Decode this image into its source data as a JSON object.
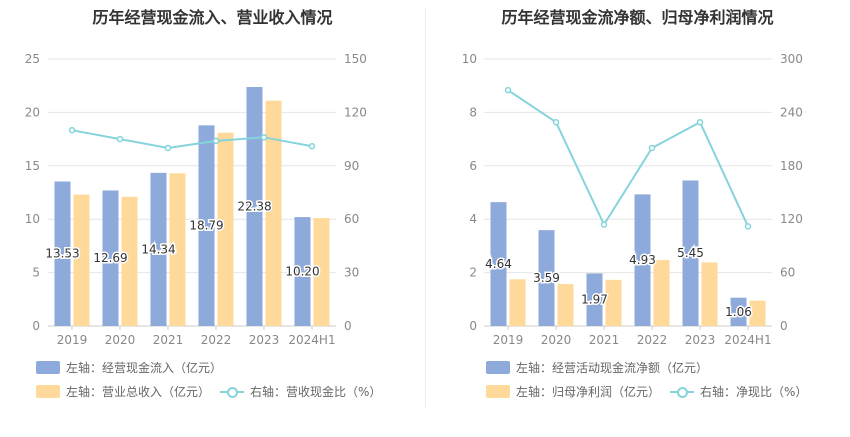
{
  "chart_data": [
    {
      "type": "bar",
      "title": "历年经营现金流入、营业收入情况",
      "categories": [
        "2019",
        "2020",
        "2021",
        "2022",
        "2023",
        "2024H1"
      ],
      "series": [
        {
          "name": "左轴：经营现金流入（亿元）",
          "axis": "left",
          "kind": "bar",
          "color": "#8eaadb",
          "values": [
            13.53,
            12.69,
            14.34,
            18.79,
            22.38,
            10.2
          ],
          "labels": [
            "13.53",
            "12.69",
            "14.34",
            "18.79",
            "22.38",
            "10.20"
          ]
        },
        {
          "name": "左轴：营业总收入（亿元）",
          "axis": "left",
          "kind": "bar",
          "color": "#ffd99a",
          "values": [
            12.3,
            12.1,
            14.3,
            18.1,
            21.1,
            10.1
          ]
        },
        {
          "name": "右轴：营收现金比（%）",
          "axis": "right",
          "kind": "line",
          "color": "#85d4dc",
          "values": [
            110,
            105,
            100,
            104,
            106,
            101
          ]
        }
      ],
      "left_axis": {
        "min": 0,
        "max": 25,
        "ticks": [
          "0",
          "5",
          "10",
          "15",
          "20",
          "25"
        ]
      },
      "right_axis": {
        "min": 0,
        "max": 150,
        "ticks": [
          "0",
          "30",
          "60",
          "90",
          "120",
          "150"
        ]
      },
      "legend": "bottom-left"
    },
    {
      "type": "bar",
      "title": "历年经营现金流净额、归母净利润情况",
      "categories": [
        "2019",
        "2020",
        "2021",
        "2022",
        "2023",
        "2024H1"
      ],
      "series": [
        {
          "name": "左轴：经营活动现金流净额（亿元）",
          "axis": "left",
          "kind": "bar",
          "color": "#8eaadb",
          "values": [
            4.64,
            3.59,
            1.97,
            4.93,
            5.45,
            1.06
          ],
          "labels": [
            "4.64",
            "3.59",
            "1.97",
            "4.93",
            "5.45",
            "1.06"
          ]
        },
        {
          "name": "左轴：归母净利润（亿元）",
          "axis": "left",
          "kind": "bar",
          "color": "#ffd99a",
          "values": [
            1.75,
            1.57,
            1.73,
            2.47,
            2.38,
            0.95
          ]
        },
        {
          "name": "右轴：净现比（%）",
          "axis": "right",
          "kind": "line",
          "color": "#85d4dc",
          "values": [
            265,
            229,
            114,
            200,
            229,
            112
          ]
        }
      ],
      "left_axis": {
        "min": 0,
        "max": 10,
        "ticks": [
          "0",
          "2",
          "4",
          "6",
          "8",
          "10"
        ]
      },
      "right_axis": {
        "min": 0,
        "max": 300,
        "ticks": [
          "0",
          "60",
          "120",
          "180",
          "240",
          "300"
        ]
      },
      "legend": "bottom-left"
    }
  ]
}
